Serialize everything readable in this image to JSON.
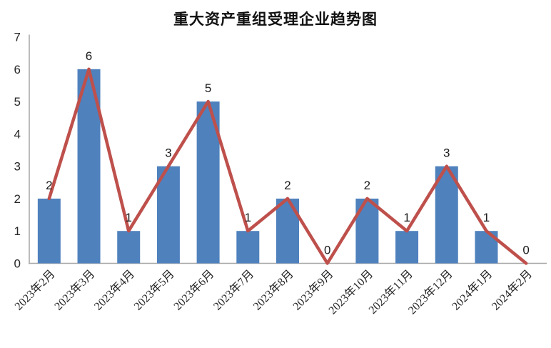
{
  "chart_data": {
    "type": "bar",
    "overlay_line": true,
    "title": "重大资产重组受理企业趋势图",
    "categories": [
      "2023年2月",
      "2023年3月",
      "2023年4月",
      "2023年5月",
      "2023年6月",
      "2023年7月",
      "2023年8月",
      "2023年9月",
      "2023年10月",
      "2023年11月",
      "2023年12月",
      "2024年1月",
      "2024年2月"
    ],
    "values": [
      2,
      6,
      1,
      3,
      5,
      1,
      2,
      0,
      2,
      1,
      3,
      1,
      0
    ],
    "data_labels": [
      "2",
      "6",
      "1",
      "3",
      "5",
      "1",
      "2",
      "0",
      "2",
      "1",
      "3",
      "1",
      "0"
    ],
    "xlabel": "",
    "ylabel": "",
    "ylim": [
      0,
      7
    ],
    "yticks": [
      "0",
      "1",
      "2",
      "3",
      "4",
      "5",
      "6",
      "7"
    ],
    "grid": false,
    "legend": "none",
    "colors": {
      "bar": "#4F81BD",
      "line": "#BE504C",
      "axis": "#A6A6A6",
      "data_label": "#1a1a1a",
      "tick_label": "#262626",
      "background": "#ffffff"
    }
  }
}
